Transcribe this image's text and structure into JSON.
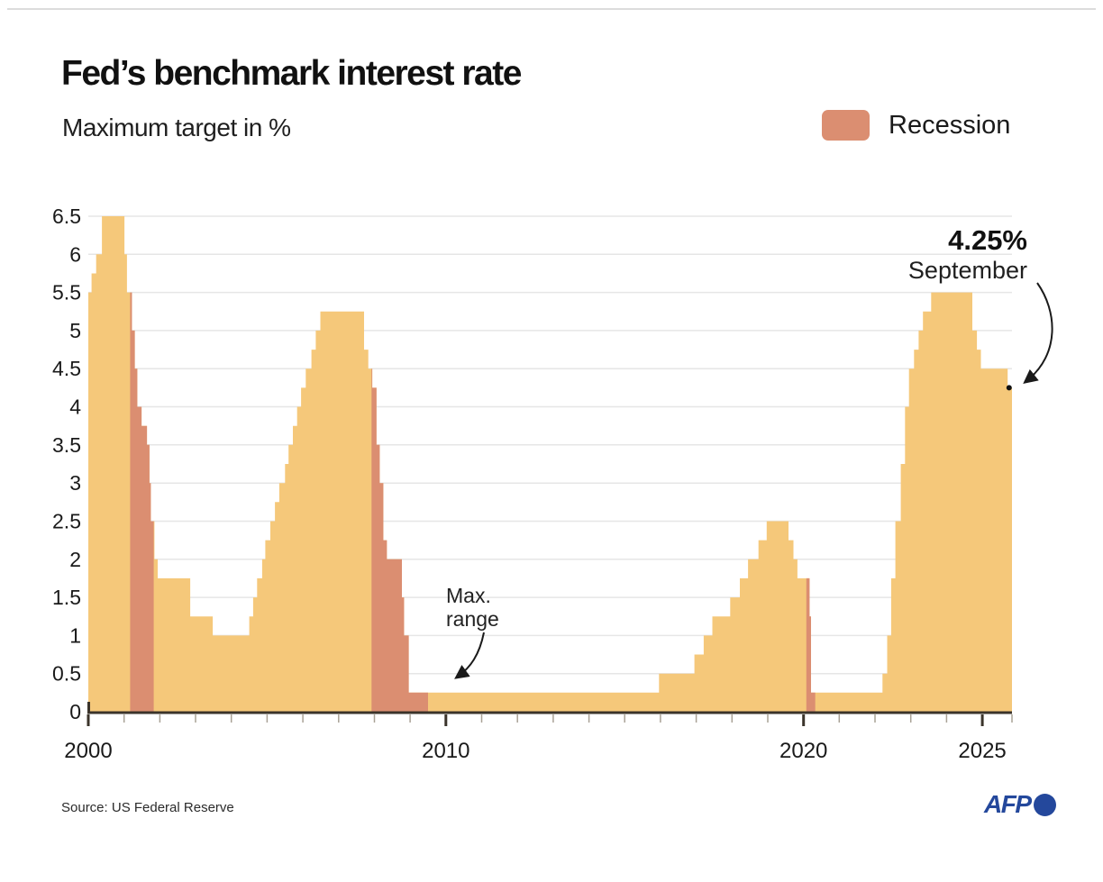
{
  "header": {
    "title": "Fed’s benchmark interest rate",
    "subtitle": "Maximum target in %"
  },
  "legend": {
    "label": "Recession"
  },
  "annotations": {
    "current_rate": {
      "value": "4.25%",
      "month": "September"
    },
    "max_range": {
      "line1": "Max.",
      "line2": "range"
    }
  },
  "footer": {
    "source": "Source: US Federal Reserve",
    "logo": "AFP"
  },
  "colors": {
    "area": "#F5C87A",
    "recession": "#DB8E71",
    "grid": "#E6E6E6",
    "axis": "#3B342B",
    "tick_minor": "#A9A296",
    "text": "#1A1A1A",
    "afp_blue": "#24489C"
  },
  "chart_data": {
    "type": "area",
    "step": true,
    "title": "Fed’s benchmark interest rate",
    "unit": "Maximum target in %",
    "xlabel": "",
    "ylabel": "%",
    "xlim": [
      2000,
      2025.83
    ],
    "ylim": [
      0,
      6.5
    ],
    "y_tick_step": 0.5,
    "x_minor_tick_step": 1,
    "x_major_ticks": [
      2000,
      2010,
      2020,
      2025
    ],
    "grid": true,
    "legend_position": "top-right",
    "series": [
      {
        "name": "Fed benchmark interest rate (maximum target, %)",
        "points": [
          [
            2000.0,
            5.5
          ],
          [
            2000.09,
            5.75
          ],
          [
            2000.22,
            6.0
          ],
          [
            2000.38,
            6.5
          ],
          [
            2001.01,
            6.0
          ],
          [
            2001.08,
            5.5
          ],
          [
            2001.22,
            5.0
          ],
          [
            2001.3,
            4.5
          ],
          [
            2001.37,
            4.0
          ],
          [
            2001.49,
            3.75
          ],
          [
            2001.64,
            3.5
          ],
          [
            2001.71,
            3.0
          ],
          [
            2001.75,
            2.5
          ],
          [
            2001.85,
            2.0
          ],
          [
            2001.94,
            1.75
          ],
          [
            2002.85,
            1.25
          ],
          [
            2003.48,
            1.0
          ],
          [
            2004.5,
            1.25
          ],
          [
            2004.61,
            1.5
          ],
          [
            2004.72,
            1.75
          ],
          [
            2004.86,
            2.0
          ],
          [
            2004.95,
            2.25
          ],
          [
            2005.09,
            2.5
          ],
          [
            2005.22,
            2.75
          ],
          [
            2005.34,
            3.0
          ],
          [
            2005.5,
            3.25
          ],
          [
            2005.6,
            3.5
          ],
          [
            2005.72,
            3.75
          ],
          [
            2005.84,
            4.0
          ],
          [
            2005.95,
            4.25
          ],
          [
            2006.08,
            4.5
          ],
          [
            2006.24,
            4.75
          ],
          [
            2006.36,
            5.0
          ],
          [
            2006.49,
            5.25
          ],
          [
            2007.71,
            4.75
          ],
          [
            2007.83,
            4.5
          ],
          [
            2007.94,
            4.25
          ],
          [
            2008.06,
            3.5
          ],
          [
            2008.15,
            3.0
          ],
          [
            2008.25,
            2.25
          ],
          [
            2008.35,
            2.0
          ],
          [
            2008.77,
            1.5
          ],
          [
            2008.83,
            1.0
          ],
          [
            2008.96,
            0.25
          ],
          [
            2015.96,
            0.5
          ],
          [
            2016.95,
            0.75
          ],
          [
            2017.21,
            1.0
          ],
          [
            2017.45,
            1.25
          ],
          [
            2017.95,
            1.5
          ],
          [
            2018.22,
            1.75
          ],
          [
            2018.45,
            2.0
          ],
          [
            2018.74,
            2.25
          ],
          [
            2018.97,
            2.5
          ],
          [
            2019.58,
            2.25
          ],
          [
            2019.72,
            2.0
          ],
          [
            2019.83,
            1.75
          ],
          [
            2020.17,
            1.25
          ],
          [
            2020.21,
            0.25
          ],
          [
            2022.21,
            0.5
          ],
          [
            2022.34,
            1.0
          ],
          [
            2022.45,
            1.75
          ],
          [
            2022.57,
            2.5
          ],
          [
            2022.72,
            3.25
          ],
          [
            2022.84,
            4.0
          ],
          [
            2022.95,
            4.5
          ],
          [
            2023.09,
            4.75
          ],
          [
            2023.22,
            5.0
          ],
          [
            2023.34,
            5.25
          ],
          [
            2023.57,
            5.5
          ],
          [
            2024.72,
            5.0
          ],
          [
            2024.85,
            4.75
          ],
          [
            2024.96,
            4.5
          ],
          [
            2025.71,
            4.25
          ]
        ]
      }
    ],
    "recessions": [
      [
        2001.17,
        2001.83
      ],
      [
        2007.92,
        2009.5
      ],
      [
        2020.08,
        2020.33
      ]
    ],
    "end_point": {
      "x": 2025.75,
      "value": 4.25,
      "label": "4.25%",
      "sublabel": "September"
    }
  }
}
